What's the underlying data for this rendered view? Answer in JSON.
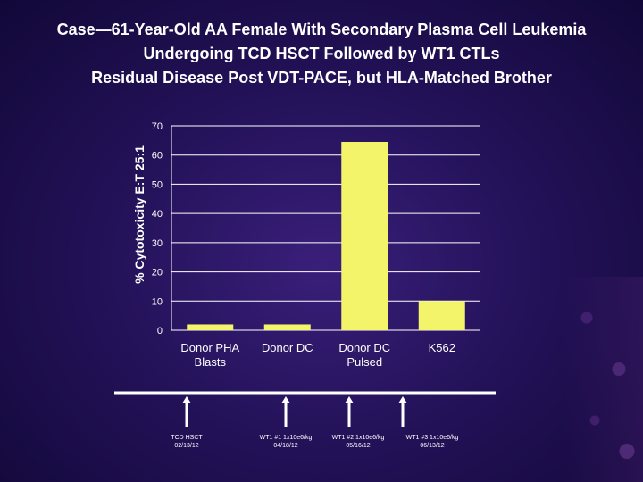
{
  "title": {
    "line1": "Case—61-Year-Old AA Female With Secondary Plasma Cell Leukemia",
    "line2": "Undergoing TCD HSCT Followed by WT1 CTLs",
    "line3": "Residual Disease Post VDT-PACE, but HLA-Matched Brother"
  },
  "colors": {
    "bar": "#f4f46a",
    "axis": "#ffffff",
    "grid": "#ffffff",
    "text": "#ffffff",
    "background": "#24125a"
  },
  "chart_data": {
    "type": "bar",
    "categories": [
      "Donor PHA\nBlasts",
      "Donor DC",
      "Donor DC\nPulsed",
      "K562"
    ],
    "values": [
      2,
      2,
      64.5,
      10
    ],
    "ylabel": "% Cytotoxicity E:T 25:1",
    "xlabel": "",
    "ylim": [
      0,
      70
    ],
    "yticks": [
      "0",
      "10",
      "20",
      "30",
      "40",
      "50",
      "60",
      "70"
    ],
    "grid": true,
    "legend": "none"
  },
  "timeline": {
    "events": [
      {
        "line1": "TCD HSCT",
        "line2": "02/13/12"
      },
      {
        "line1": "WT1 #1 1x10e6/kg",
        "line2": "04/18/12"
      },
      {
        "line1": "WT1 #2 1x10e6/kg",
        "line2": "05/16/12"
      },
      {
        "line1": "WT1 #3 1x10e6/kg",
        "line2": "06/13/12"
      }
    ]
  }
}
